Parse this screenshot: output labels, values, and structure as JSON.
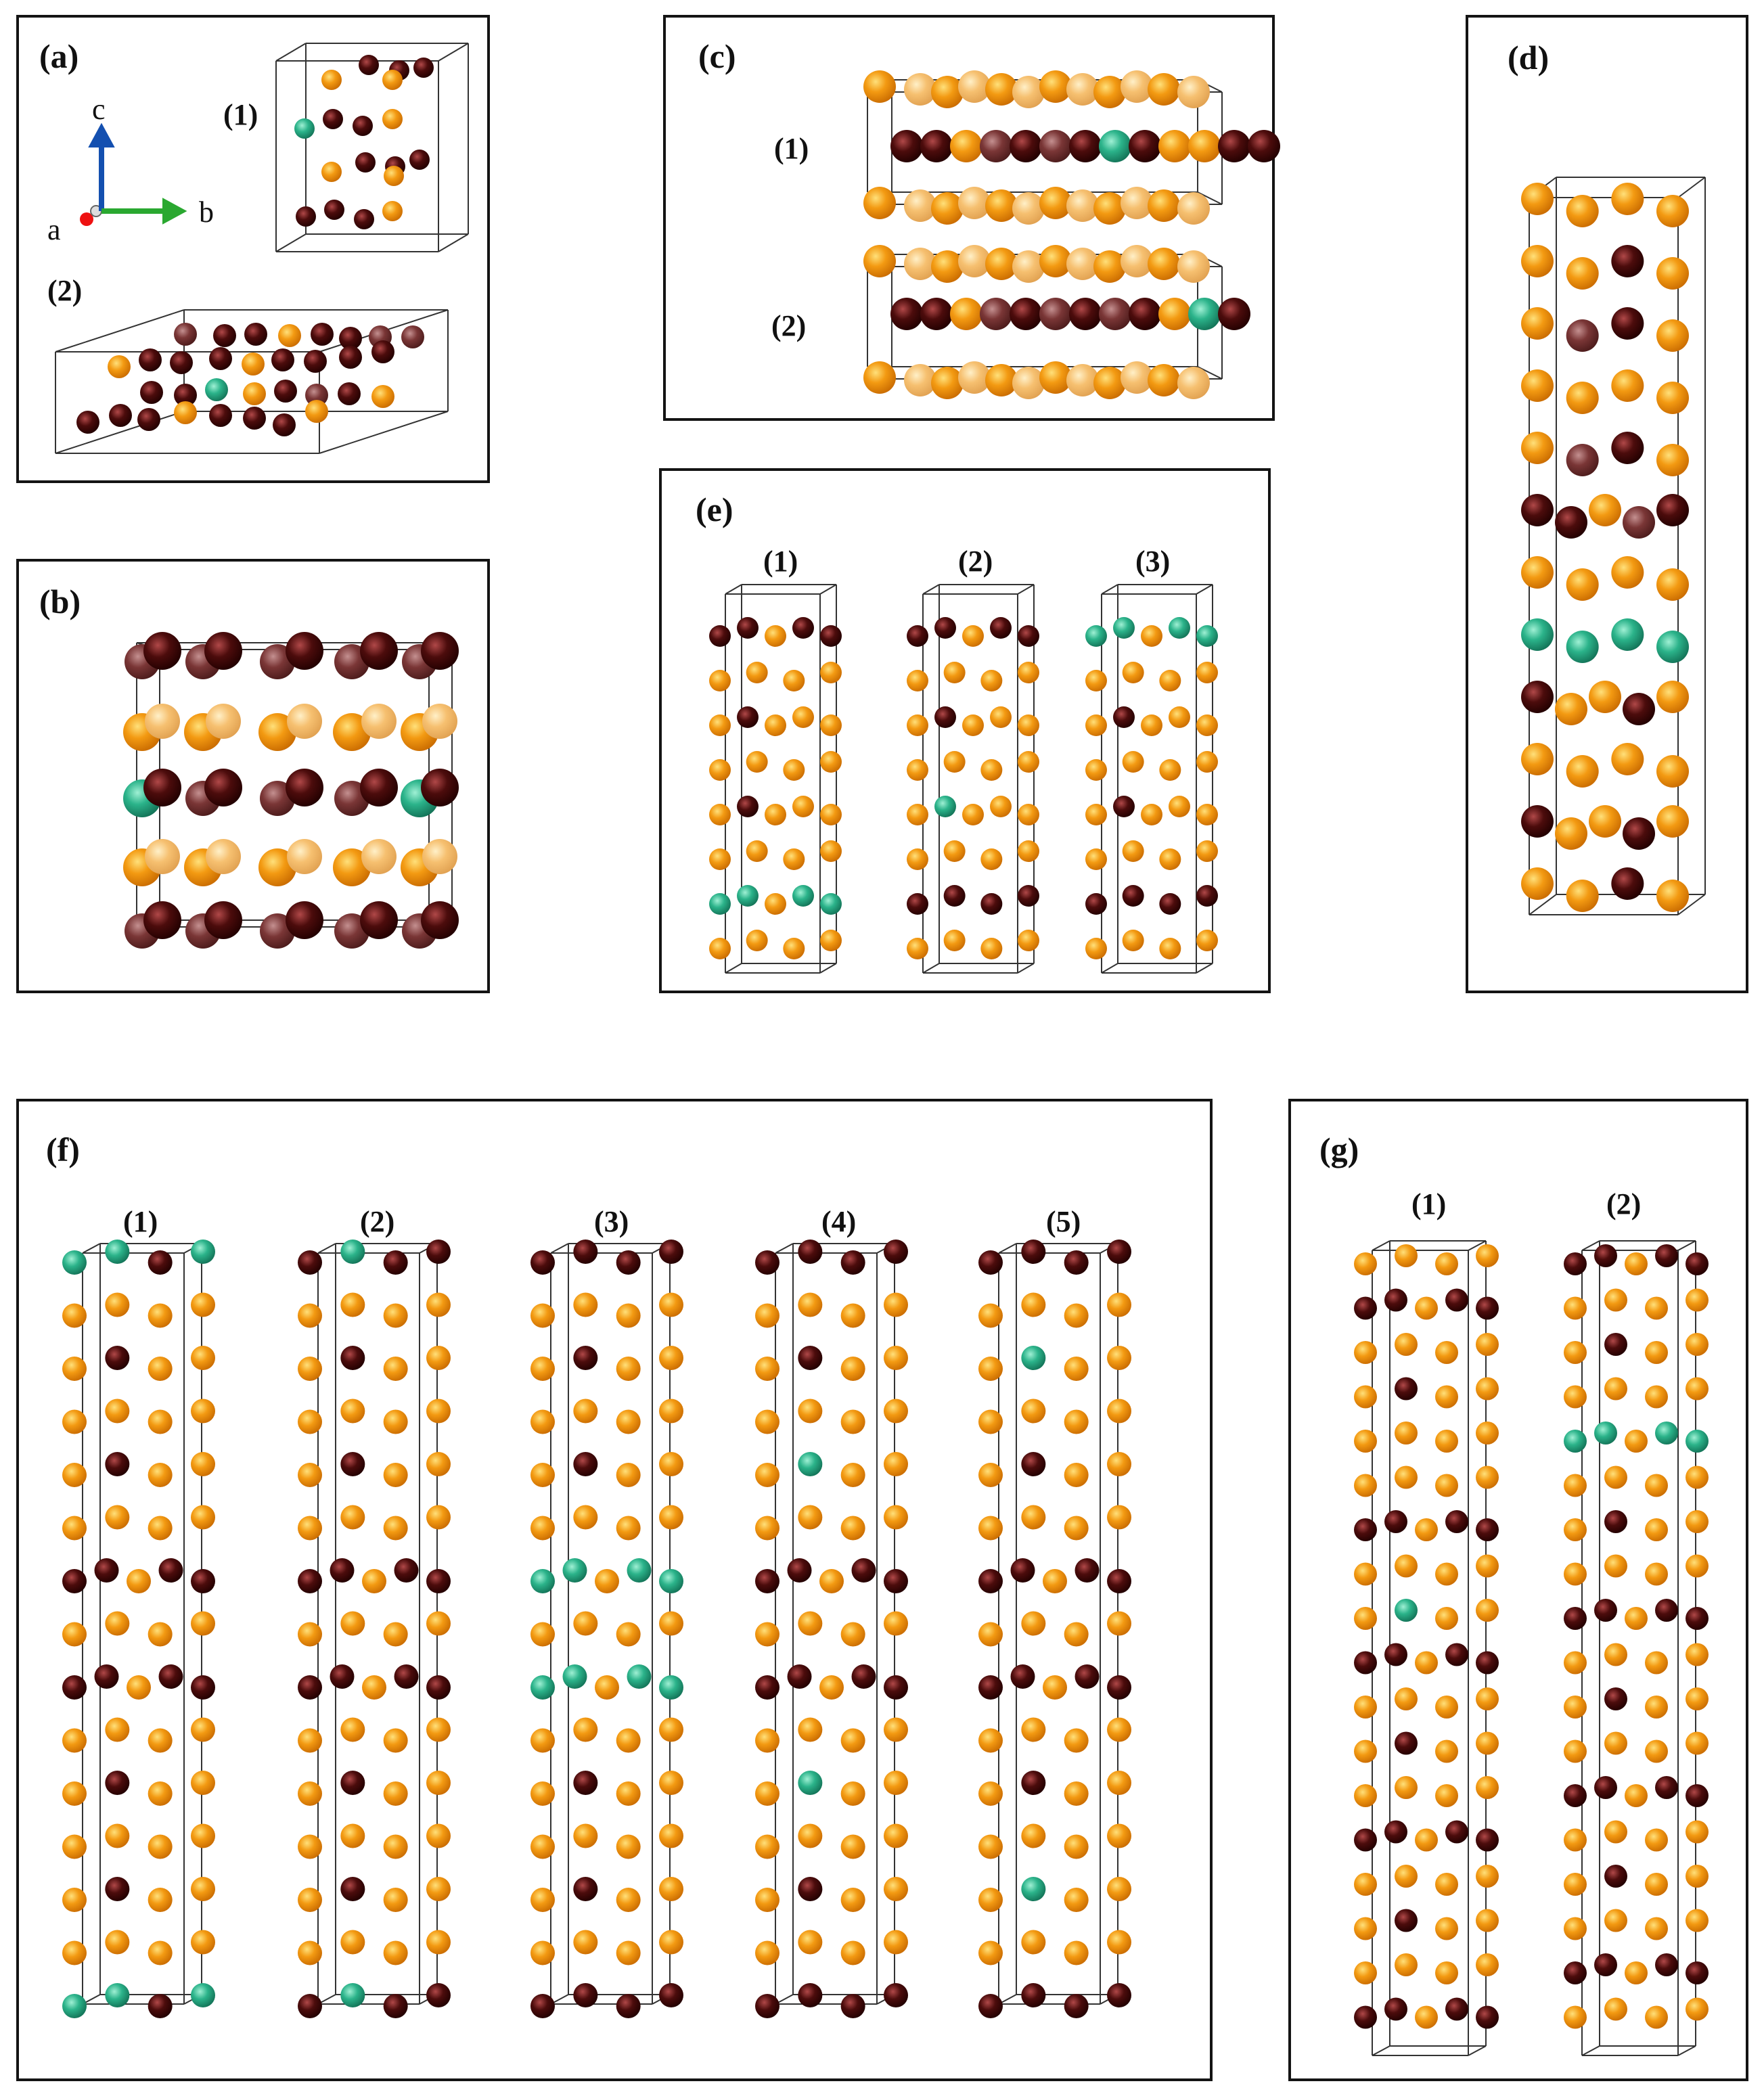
{
  "colors": {
    "Cu": "#f39a12",
    "Cu_back": "#f6c070",
    "Zr": "#4c0c0c",
    "Zr_back": "#7a3636",
    "dopant": "#2bb38a",
    "frame": "#141414",
    "cell": "#333333"
  },
  "axes": {
    "a": "a",
    "b": "b",
    "c": "c"
  },
  "panels": {
    "a": {
      "label": "(a)",
      "subs": [
        "(1)",
        "(2)"
      ]
    },
    "b": {
      "label": "(b)"
    },
    "c": {
      "label": "(c)",
      "subs": [
        "(1)",
        "(2)"
      ]
    },
    "d": {
      "label": "(d)"
    },
    "e": {
      "label": "(e)",
      "subs": [
        "(1)",
        "(2)",
        "(3)"
      ]
    },
    "f": {
      "label": "(f)",
      "subs": [
        "(1)",
        "(2)",
        "(3)",
        "(4)",
        "(5)"
      ]
    },
    "g": {
      "label": "(g)",
      "subs": [
        "(1)",
        "(2)"
      ]
    }
  }
}
